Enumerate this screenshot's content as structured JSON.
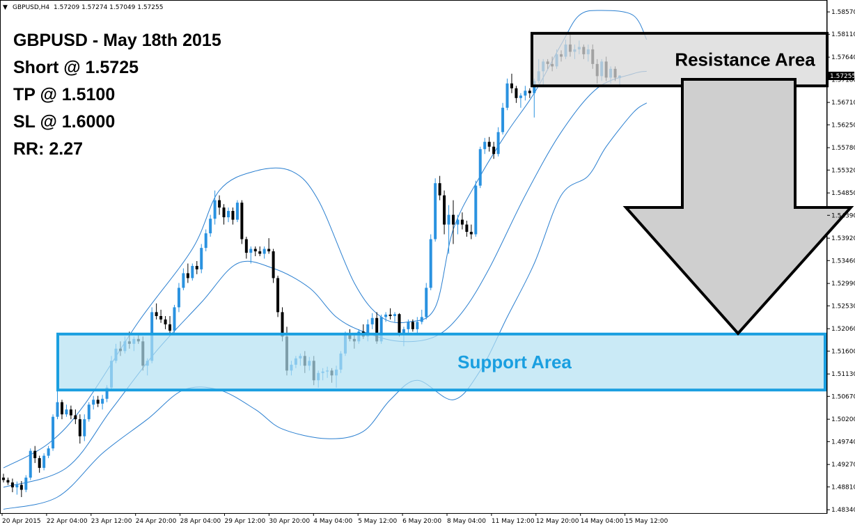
{
  "header": {
    "symbol_tf": "GBPUSD,H4",
    "ohlc": "1.57209 1.57274 1.57049 1.57255"
  },
  "notes": [
    "GBPUSD - May 18th 2015",
    "Short @ 1.5725",
    "TP @ 1.5100",
    "SL @ 1.6000",
    "RR: 2.27"
  ],
  "zones": {
    "resistance": {
      "label": "Resistance Area",
      "top": 1.5813,
      "bottom": 1.5705
    },
    "support": {
      "label": "Support Area",
      "top": 1.5195,
      "bottom": 1.508
    }
  },
  "current_price": "1.57255",
  "colors": {
    "bull": "#2a92e0",
    "bear": "#000000",
    "band": "#2a7fd0",
    "support_fill": "#b3e1f2",
    "support_stroke": "#1a9fe0",
    "support_text": "#1a9fe0",
    "resistance_fill": "#d8d8d8",
    "arrow_fill": "#cfcfcf"
  },
  "chart_data": {
    "type": "candlestick",
    "symbol": "GBPUSD",
    "timeframe": "H4",
    "y_ticks": [
      "1.58570",
      "1.58110",
      "1.57640",
      "1.57180",
      "1.56710",
      "1.56250",
      "1.55780",
      "1.55320",
      "1.54850",
      "1.54390",
      "1.53920",
      "1.53460",
      "1.52990",
      "1.52530",
      "1.52060",
      "1.51600",
      "1.51130",
      "1.50670",
      "1.50200",
      "1.49740",
      "1.49270",
      "1.48810",
      "1.48340"
    ],
    "x_ticks": [
      "20 Apr 2015",
      "22 Apr 04:00",
      "23 Apr 12:00",
      "24 Apr 20:00",
      "28 Apr 04:00",
      "29 Apr 12:00",
      "30 Apr 20:00",
      "4 May 04:00",
      "5 May 12:00",
      "6 May 20:00",
      "8 May 04:00",
      "11 May 12:00",
      "12 May 20:00",
      "14 May 04:00",
      "15 May 12:00"
    ],
    "ylim": [
      1.483,
      1.587
    ],
    "indicator": "Bollinger Bands",
    "candles": [
      [
        1.49,
        1.4908,
        1.489,
        1.4895
      ],
      [
        1.4895,
        1.49,
        1.4885,
        1.489
      ],
      [
        1.489,
        1.4898,
        1.487,
        1.488
      ],
      [
        1.488,
        1.4892,
        1.4865,
        1.4885
      ],
      [
        1.4885,
        1.4893,
        1.486,
        1.4875
      ],
      [
        1.4875,
        1.4905,
        1.487,
        1.49
      ],
      [
        1.49,
        1.496,
        1.4895,
        1.4955
      ],
      [
        1.4955,
        1.4965,
        1.493,
        1.494
      ],
      [
        1.494,
        1.4945,
        1.491,
        1.492
      ],
      [
        1.492,
        1.495,
        1.4915,
        1.4945
      ],
      [
        1.4945,
        1.4965,
        1.494,
        1.496
      ],
      [
        1.496,
        1.503,
        1.4955,
        1.5025
      ],
      [
        1.5025,
        1.508,
        1.502,
        1.5055
      ],
      [
        1.5055,
        1.506,
        1.502,
        1.503
      ],
      [
        1.503,
        1.505,
        1.5025,
        1.504
      ],
      [
        1.504,
        1.5048,
        1.502,
        1.5028
      ],
      [
        1.5028,
        1.504,
        1.501,
        1.502
      ],
      [
        1.502,
        1.503,
        1.497,
        1.4985
      ],
      [
        1.4985,
        1.503,
        1.4975,
        1.502
      ],
      [
        1.502,
        1.5055,
        1.5015,
        1.505
      ],
      [
        1.505,
        1.5068,
        1.504,
        1.506
      ],
      [
        1.506,
        1.5068,
        1.5045,
        1.5052
      ],
      [
        1.5052,
        1.507,
        1.504,
        1.5062
      ],
      [
        1.5062,
        1.509,
        1.5055,
        1.5085
      ],
      [
        1.5085,
        1.515,
        1.508,
        1.514
      ],
      [
        1.514,
        1.5175,
        1.5135,
        1.5165
      ],
      [
        1.5165,
        1.518,
        1.515,
        1.516
      ],
      [
        1.516,
        1.519,
        1.5155,
        1.518
      ],
      [
        1.518,
        1.52,
        1.5165,
        1.5175
      ],
      [
        1.5175,
        1.519,
        1.516,
        1.5185
      ],
      [
        1.5185,
        1.5195,
        1.5175,
        1.518
      ],
      [
        1.518,
        1.519,
        1.512,
        1.513
      ],
      [
        1.513,
        1.5145,
        1.511,
        1.514
      ],
      [
        1.514,
        1.525,
        1.5135,
        1.524
      ],
      [
        1.524,
        1.5258,
        1.5225,
        1.5232
      ],
      [
        1.5232,
        1.5245,
        1.5218,
        1.5225
      ],
      [
        1.5225,
        1.5232,
        1.5205,
        1.5215
      ],
      [
        1.5215,
        1.5232,
        1.5195,
        1.5202
      ],
      [
        1.5202,
        1.5255,
        1.5198,
        1.525
      ],
      [
        1.525,
        1.53,
        1.524,
        1.529
      ],
      [
        1.529,
        1.533,
        1.5285,
        1.532
      ],
      [
        1.532,
        1.534,
        1.53,
        1.531
      ],
      [
        1.531,
        1.534,
        1.5305,
        1.5335
      ],
      [
        1.5335,
        1.5345,
        1.5318,
        1.5328
      ],
      [
        1.5328,
        1.538,
        1.532,
        1.5372
      ],
      [
        1.5372,
        1.541,
        1.5365,
        1.5402
      ],
      [
        1.5402,
        1.544,
        1.5395,
        1.5432
      ],
      [
        1.5432,
        1.549,
        1.542,
        1.547
      ],
      [
        1.547,
        1.548,
        1.544,
        1.5455
      ],
      [
        1.5455,
        1.5462,
        1.542,
        1.5435
      ],
      [
        1.5435,
        1.5455,
        1.5425,
        1.5448
      ],
      [
        1.5448,
        1.5455,
        1.542,
        1.543
      ],
      [
        1.543,
        1.547,
        1.5425,
        1.5465
      ],
      [
        1.5465,
        1.547,
        1.538,
        1.539
      ],
      [
        1.539,
        1.5395,
        1.535,
        1.5362
      ],
      [
        1.5362,
        1.5375,
        1.534,
        1.537
      ],
      [
        1.537,
        1.5375,
        1.5355,
        1.5365
      ],
      [
        1.5365,
        1.5375,
        1.5355,
        1.536
      ],
      [
        1.536,
        1.5375,
        1.535,
        1.537
      ],
      [
        1.537,
        1.5392,
        1.536,
        1.5365
      ],
      [
        1.5365,
        1.537,
        1.53,
        1.531
      ],
      [
        1.531,
        1.5315,
        1.523,
        1.524
      ],
      [
        1.524,
        1.525,
        1.518,
        1.519
      ],
      [
        1.519,
        1.521,
        1.511,
        1.512
      ],
      [
        1.512,
        1.514,
        1.511,
        1.5132
      ],
      [
        1.5132,
        1.515,
        1.5125,
        1.5145
      ],
      [
        1.5145,
        1.5155,
        1.513,
        1.515
      ],
      [
        1.515,
        1.516,
        1.5115,
        1.513
      ],
      [
        1.513,
        1.5148,
        1.512,
        1.514
      ],
      [
        1.514,
        1.515,
        1.509,
        1.51
      ],
      [
        1.51,
        1.512,
        1.5085,
        1.5115
      ],
      [
        1.5115,
        1.5125,
        1.51,
        1.5118
      ],
      [
        1.5118,
        1.5128,
        1.5105,
        1.512
      ],
      [
        1.512,
        1.5125,
        1.5095,
        1.511
      ],
      [
        1.511,
        1.513,
        1.5085,
        1.5122
      ],
      [
        1.5122,
        1.516,
        1.5115,
        1.5155
      ],
      [
        1.5155,
        1.52,
        1.515,
        1.5195
      ],
      [
        1.5195,
        1.5205,
        1.518,
        1.5185
      ],
      [
        1.5185,
        1.5195,
        1.5165,
        1.518
      ],
      [
        1.518,
        1.5205,
        1.5175,
        1.52
      ],
      [
        1.52,
        1.5215,
        1.5185,
        1.519
      ],
      [
        1.519,
        1.5225,
        1.518,
        1.5215
      ],
      [
        1.5215,
        1.5238,
        1.5205,
        1.5228
      ],
      [
        1.5228,
        1.524,
        1.5175,
        1.518
      ],
      [
        1.518,
        1.5235,
        1.5175,
        1.523
      ],
      [
        1.523,
        1.524,
        1.522,
        1.5235
      ],
      [
        1.5235,
        1.5248,
        1.5225,
        1.5232
      ],
      [
        1.5232,
        1.524,
        1.522,
        1.5236
      ],
      [
        1.5236,
        1.5238,
        1.519,
        1.5195
      ],
      [
        1.5195,
        1.521,
        1.517,
        1.5205
      ],
      [
        1.5205,
        1.5225,
        1.5195,
        1.522
      ],
      [
        1.522,
        1.5225,
        1.52,
        1.5205
      ],
      [
        1.5205,
        1.523,
        1.5195,
        1.522
      ],
      [
        1.522,
        1.5245,
        1.5215,
        1.523
      ],
      [
        1.523,
        1.53,
        1.5225,
        1.529
      ],
      [
        1.529,
        1.54,
        1.5285,
        1.539
      ],
      [
        1.539,
        1.5515,
        1.5385,
        1.5505
      ],
      [
        1.5505,
        1.552,
        1.547,
        1.548
      ],
      [
        1.548,
        1.549,
        1.54,
        1.542
      ],
      [
        1.542,
        1.546,
        1.536,
        1.544
      ],
      [
        1.544,
        1.547,
        1.538,
        1.542
      ],
      [
        1.542,
        1.544,
        1.54,
        1.543
      ],
      [
        1.543,
        1.5445,
        1.541,
        1.542
      ],
      [
        1.542,
        1.5428,
        1.5395,
        1.5405
      ],
      [
        1.5405,
        1.542,
        1.539,
        1.54
      ],
      [
        1.54,
        1.551,
        1.5395,
        1.55
      ],
      [
        1.55,
        1.558,
        1.5495,
        1.5575
      ],
      [
        1.5575,
        1.5598,
        1.5565,
        1.559
      ],
      [
        1.559,
        1.56,
        1.557,
        1.558
      ],
      [
        1.558,
        1.559,
        1.5555,
        1.5565
      ],
      [
        1.5565,
        1.562,
        1.556,
        1.561
      ],
      [
        1.561,
        1.567,
        1.5605,
        1.566
      ],
      [
        1.566,
        1.572,
        1.5655,
        1.571
      ],
      [
        1.571,
        1.573,
        1.569,
        1.57
      ],
      [
        1.57,
        1.5705,
        1.567,
        1.568
      ],
      [
        1.568,
        1.569,
        1.566,
        1.5685
      ],
      [
        1.5685,
        1.5705,
        1.5675,
        1.5695
      ],
      [
        1.5695,
        1.57,
        1.568,
        1.569
      ],
      [
        1.569,
        1.572,
        1.564,
        1.5715
      ],
      [
        1.5715,
        1.576,
        1.571,
        1.5735
      ],
      [
        1.5735,
        1.576,
        1.5705,
        1.5755
      ],
      [
        1.5755,
        1.576,
        1.574,
        1.575
      ],
      [
        1.575,
        1.5765,
        1.5735,
        1.5745
      ],
      [
        1.5745,
        1.578,
        1.574,
        1.577
      ],
      [
        1.577,
        1.5778,
        1.5755,
        1.5765
      ],
      [
        1.5765,
        1.58,
        1.576,
        1.579
      ],
      [
        1.579,
        1.581,
        1.5765,
        1.5775
      ],
      [
        1.5775,
        1.579,
        1.576,
        1.578
      ],
      [
        1.578,
        1.5798,
        1.577,
        1.5785
      ],
      [
        1.5785,
        1.579,
        1.576,
        1.577
      ],
      [
        1.577,
        1.579,
        1.5755,
        1.578
      ],
      [
        1.578,
        1.579,
        1.574,
        1.575
      ],
      [
        1.575,
        1.576,
        1.571,
        1.5725
      ],
      [
        1.5725,
        1.576,
        1.5715,
        1.5755
      ],
      [
        1.5755,
        1.5765,
        1.5715,
        1.5722
      ],
      [
        1.5722,
        1.5745,
        1.571,
        1.574
      ],
      [
        1.574,
        1.5745,
        1.5715,
        1.5722
      ],
      [
        1.5721,
        1.5727,
        1.5705,
        1.5726
      ]
    ],
    "bands": {
      "upper": [
        [
          0,
          1.492
        ],
        [
          10,
          1.497
        ],
        [
          18,
          1.505
        ],
        [
          30,
          1.522
        ],
        [
          42,
          1.537
        ],
        [
          48,
          1.549
        ],
        [
          56,
          1.553
        ],
        [
          64,
          1.553
        ],
        [
          70,
          1.547
        ],
        [
          78,
          1.53
        ],
        [
          84,
          1.523
        ],
        [
          90,
          1.522
        ],
        [
          96,
          1.525
        ],
        [
          100,
          1.541
        ],
        [
          106,
          1.552
        ],
        [
          112,
          1.561
        ],
        [
          118,
          1.569
        ],
        [
          124,
          1.579
        ],
        [
          128,
          1.585
        ],
        [
          133,
          1.586
        ],
        [
          140,
          1.585
        ],
        [
          143,
          1.58
        ]
      ],
      "middle": [
        [
          0,
          1.488
        ],
        [
          14,
          1.492
        ],
        [
          24,
          1.504
        ],
        [
          34,
          1.516
        ],
        [
          44,
          1.526
        ],
        [
          52,
          1.534
        ],
        [
          60,
          1.533
        ],
        [
          68,
          1.529
        ],
        [
          74,
          1.523
        ],
        [
          80,
          1.52
        ],
        [
          88,
          1.518
        ],
        [
          96,
          1.519
        ],
        [
          102,
          1.524
        ],
        [
          108,
          1.533
        ],
        [
          116,
          1.548
        ],
        [
          124,
          1.561
        ],
        [
          132,
          1.57
        ],
        [
          140,
          1.573
        ],
        [
          143,
          1.5735
        ]
      ],
      "lower": [
        [
          0,
          1.4835
        ],
        [
          12,
          1.486
        ],
        [
          22,
          1.495
        ],
        [
          32,
          1.502
        ],
        [
          40,
          1.508
        ],
        [
          48,
          1.508
        ],
        [
          56,
          1.504
        ],
        [
          62,
          1.5
        ],
        [
          72,
          1.498
        ],
        [
          80,
          1.4995
        ],
        [
          86,
          1.506
        ],
        [
          92,
          1.51
        ],
        [
          100,
          1.506
        ],
        [
          106,
          1.512
        ],
        [
          112,
          1.523
        ],
        [
          118,
          1.534
        ],
        [
          124,
          1.548
        ],
        [
          130,
          1.552
        ],
        [
          134,
          1.558
        ],
        [
          140,
          1.565
        ],
        [
          143,
          1.567
        ]
      ]
    }
  }
}
